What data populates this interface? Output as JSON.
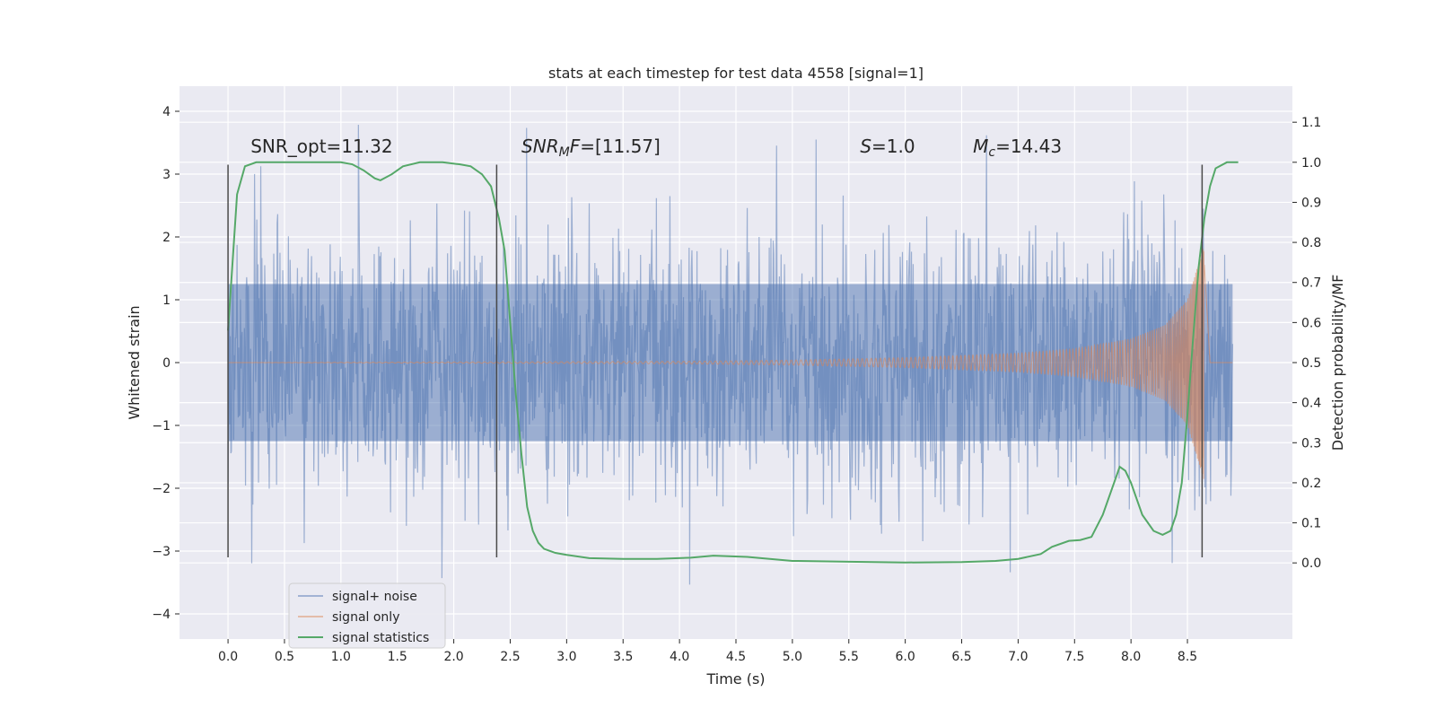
{
  "chart_data": {
    "type": "line",
    "title": "stats at each timestep for test data 4558 [signal=1]",
    "xlabel": "Time (s)",
    "ylabel": "Whitened strain",
    "y2label": "Detection probability/MF",
    "xlim": [
      -0.43,
      9.43
    ],
    "ylim": [
      -4.4,
      4.4
    ],
    "y2lim": [
      -0.19,
      1.19
    ],
    "x_ticks": [
      0.0,
      0.5,
      1.0,
      1.5,
      2.0,
      2.5,
      3.0,
      3.5,
      4.0,
      4.5,
      5.0,
      5.5,
      6.0,
      6.5,
      7.0,
      7.5,
      8.0,
      8.5
    ],
    "x_tick_labels": [
      "0.0",
      "0.5",
      "1.0",
      "1.5",
      "2.0",
      "2.5",
      "3.0",
      "3.5",
      "4.0",
      "4.5",
      "5.0",
      "5.5",
      "6.0",
      "6.5",
      "7.0",
      "7.5",
      "8.0",
      "8.5"
    ],
    "y_ticks": [
      -4,
      -3,
      -2,
      -1,
      0,
      1,
      2,
      3,
      4
    ],
    "y_tick_labels": [
      "−4",
      "−3",
      "−2",
      "−1",
      "0",
      "1",
      "2",
      "3",
      "4"
    ],
    "y2_ticks": [
      0.0,
      0.1,
      0.2,
      0.3,
      0.4,
      0.5,
      0.6,
      0.7,
      0.8,
      0.9,
      1.0,
      1.1
    ],
    "y2_tick_labels": [
      "0.0",
      "0.1",
      "0.2",
      "0.3",
      "0.4",
      "0.5",
      "0.6",
      "0.7",
      "0.8",
      "0.9",
      "1.0",
      "1.1"
    ],
    "grid": true,
    "legend_position": "lower-left",
    "annotations": [
      {
        "x": 0.2,
        "y": 3.2,
        "parts": [
          {
            "t": "SNR_opt=11.32"
          }
        ]
      },
      {
        "x": 2.6,
        "y": 3.2,
        "parts": [
          {
            "t": "SNR",
            "i": true
          },
          {
            "t": "M",
            "i": true,
            "sub": true
          },
          {
            "t": "F",
            "i": true
          },
          {
            "t": "=[11.57]"
          }
        ]
      },
      {
        "x": 5.6,
        "y": 3.2,
        "parts": [
          {
            "t": "S",
            "i": true
          },
          {
            "t": "=1.0"
          }
        ]
      },
      {
        "x": 6.6,
        "y": 3.2,
        "parts": [
          {
            "t": "M",
            "i": true
          },
          {
            "t": "c",
            "i": true,
            "sub": true
          },
          {
            "t": "=14.43"
          }
        ]
      }
    ],
    "vertical_markers": [
      {
        "x": 0.0,
        "y": [
          -3.1,
          3.15
        ]
      },
      {
        "x": 2.38,
        "y": [
          -3.1,
          3.15
        ]
      },
      {
        "x": 8.63,
        "y": [
          -3.1,
          3.15
        ]
      }
    ],
    "series": [
      {
        "name": "signal+ noise",
        "color": "#4c72b0",
        "axis": "left",
        "kind": "noise",
        "x_range": [
          0.0,
          8.9
        ],
        "typical_envelope": 1.25,
        "max_spike": 4.0,
        "min_spike": -3.9
      },
      {
        "name": "signal only",
        "color": "#dd8452",
        "axis": "left",
        "kind": "chirp",
        "x_range": [
          0.0,
          8.9
        ],
        "merger_time": 8.65,
        "amplitude_points": [
          [
            0.0,
            0.0
          ],
          [
            4.0,
            0.02
          ],
          [
            5.0,
            0.04
          ],
          [
            6.0,
            0.08
          ],
          [
            7.0,
            0.15
          ],
          [
            7.5,
            0.22
          ],
          [
            8.0,
            0.38
          ],
          [
            8.3,
            0.6
          ],
          [
            8.5,
            1.0
          ],
          [
            8.6,
            1.6
          ],
          [
            8.65,
            1.9
          ],
          [
            8.7,
            0.0
          ],
          [
            8.9,
            0.0
          ]
        ]
      },
      {
        "name": "signal statistics",
        "color": "#55a868",
        "axis": "right",
        "kind": "line",
        "x": [
          0.0,
          0.08,
          0.15,
          0.25,
          0.5,
          0.8,
          1.0,
          1.1,
          1.2,
          1.3,
          1.35,
          1.45,
          1.55,
          1.7,
          1.9,
          2.05,
          2.15,
          2.25,
          2.33,
          2.4,
          2.45,
          2.5,
          2.55,
          2.6,
          2.65,
          2.7,
          2.75,
          2.8,
          2.9,
          3.0,
          3.2,
          3.5,
          3.8,
          4.1,
          4.3,
          4.6,
          5.0,
          5.5,
          6.0,
          6.5,
          6.8,
          7.0,
          7.2,
          7.3,
          7.45,
          7.55,
          7.65,
          7.75,
          7.85,
          7.9,
          7.95,
          8.0,
          8.05,
          8.1,
          8.2,
          8.28,
          8.35,
          8.4,
          8.45,
          8.5,
          8.55,
          8.6,
          8.65,
          8.7,
          8.75,
          8.85,
          8.95
        ],
        "values": [
          0.58,
          0.92,
          0.99,
          1.0,
          1.0,
          1.0,
          1.0,
          0.995,
          0.98,
          0.96,
          0.955,
          0.97,
          0.99,
          1.0,
          1.0,
          0.995,
          0.99,
          0.97,
          0.94,
          0.86,
          0.78,
          0.6,
          0.42,
          0.27,
          0.14,
          0.08,
          0.05,
          0.035,
          0.025,
          0.02,
          0.012,
          0.01,
          0.01,
          0.013,
          0.018,
          0.015,
          0.005,
          0.003,
          0.001,
          0.002,
          0.005,
          0.01,
          0.022,
          0.04,
          0.055,
          0.057,
          0.065,
          0.12,
          0.2,
          0.24,
          0.23,
          0.2,
          0.16,
          0.12,
          0.08,
          0.07,
          0.08,
          0.12,
          0.2,
          0.37,
          0.56,
          0.74,
          0.86,
          0.94,
          0.985,
          1.0,
          1.0
        ]
      }
    ]
  }
}
